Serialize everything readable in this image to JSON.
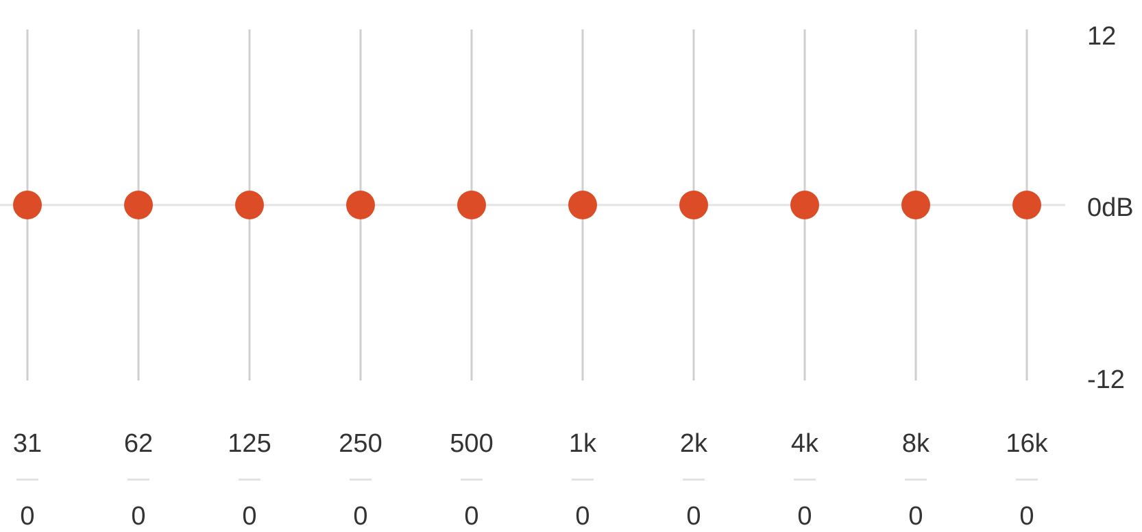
{
  "equalizer": {
    "scale": {
      "max_label": "12",
      "zero_label": "0dB",
      "min_label": "-12",
      "max_db": 12,
      "min_db": -12
    },
    "bands": [
      {
        "frequency": "31",
        "value_label": "0",
        "gain_db": 0
      },
      {
        "frequency": "62",
        "value_label": "0",
        "gain_db": 0
      },
      {
        "frequency": "125",
        "value_label": "0",
        "gain_db": 0
      },
      {
        "frequency": "250",
        "value_label": "0",
        "gain_db": 0
      },
      {
        "frequency": "500",
        "value_label": "0",
        "gain_db": 0
      },
      {
        "frequency": "1k",
        "value_label": "0",
        "gain_db": 0
      },
      {
        "frequency": "2k",
        "value_label": "0",
        "gain_db": 0
      },
      {
        "frequency": "4k",
        "value_label": "0",
        "gain_db": 0
      },
      {
        "frequency": "8k",
        "value_label": "0",
        "gain_db": 0
      },
      {
        "frequency": "16k",
        "value_label": "0",
        "gain_db": 0
      }
    ],
    "colors": {
      "accent": "#dc4c26",
      "track": "#cfcfcf",
      "zero_line": "#e3e3e3",
      "text": "#333333"
    }
  }
}
